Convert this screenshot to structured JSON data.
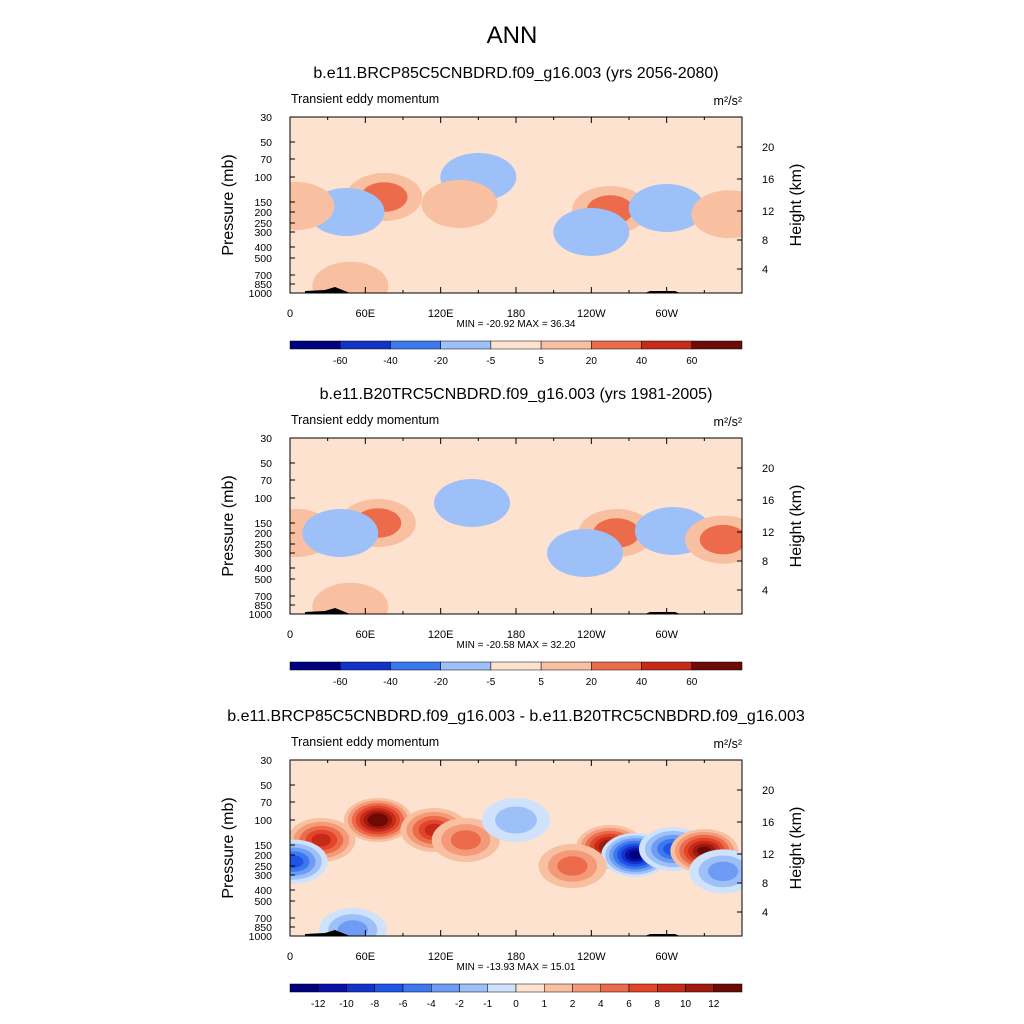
{
  "figure": {
    "title": "ANN"
  },
  "chart_data": [
    {
      "type": "heatmap",
      "title": "b.e11.BRCP85C5CNBDRD.f09_g16.003 (yrs 2056-2080)",
      "subtitle": "Transient eddy momentum",
      "units": "m²/s²",
      "ylabel": "Pressure (mb)",
      "y2label": "Height (km)",
      "xticks": [
        "0",
        "60E",
        "120E",
        "180",
        "120W",
        "60W"
      ],
      "yticks": [
        "30",
        "50",
        "70",
        "100",
        "150",
        "200",
        "250",
        "300",
        "400",
        "500",
        "700",
        "850",
        "1000"
      ],
      "y2ticks": [
        "4",
        "8",
        "12",
        "16",
        "20"
      ],
      "stats": "MIN = -20.92  MAX =  36.34",
      "colorbar_labels": [
        "-60",
        "-40",
        "-20",
        "-5",
        "5",
        "20",
        "40",
        "60"
      ],
      "features": [
        {
          "lon": 75,
          "p": 140,
          "value": 36
        },
        {
          "lon": 150,
          "p": 100,
          "value": -8
        },
        {
          "lon": 135,
          "p": 160,
          "value": 8
        },
        {
          "lon": 45,
          "p": 200,
          "value": -5
        },
        {
          "lon": 255,
          "p": 190,
          "value": 30
        },
        {
          "lon": 300,
          "p": 180,
          "value": -21
        },
        {
          "lon": 350,
          "p": 210,
          "value": 15
        },
        {
          "lon": 5,
          "p": 170,
          "value": 10
        },
        {
          "lon": 48,
          "p": 880,
          "value": 20
        },
        {
          "lon": 240,
          "p": 300,
          "value": -4
        }
      ]
    },
    {
      "type": "heatmap",
      "title": "b.e11.B20TRC5CNBDRD.f09_g16.003 (yrs 1981-2005)",
      "subtitle": "Transient eddy momentum",
      "units": "m²/s²",
      "ylabel": "Pressure (mb)",
      "y2label": "Height (km)",
      "xticks": [
        "0",
        "60E",
        "120E",
        "180",
        "120W",
        "60W"
      ],
      "yticks": [
        "30",
        "50",
        "70",
        "100",
        "150",
        "200",
        "250",
        "300",
        "400",
        "500",
        "700",
        "850",
        "1000"
      ],
      "y2ticks": [
        "4",
        "8",
        "12",
        "16",
        "20"
      ],
      "stats": "MIN = -20.58  MAX =  32.20",
      "colorbar_labels": [
        "-60",
        "-40",
        "-20",
        "-5",
        "5",
        "20",
        "40",
        "60"
      ],
      "features": [
        {
          "lon": 70,
          "p": 150,
          "value": 30
        },
        {
          "lon": 145,
          "p": 110,
          "value": -10
        },
        {
          "lon": 5,
          "p": 200,
          "value": 15
        },
        {
          "lon": 40,
          "p": 200,
          "value": -8
        },
        {
          "lon": 260,
          "p": 200,
          "value": 32
        },
        {
          "lon": 305,
          "p": 190,
          "value": -20
        },
        {
          "lon": 345,
          "p": 230,
          "value": 25
        },
        {
          "lon": 48,
          "p": 880,
          "value": 20
        },
        {
          "lon": 235,
          "p": 300,
          "value": -4
        }
      ]
    },
    {
      "type": "heatmap",
      "title": "b.e11.BRCP85C5CNBDRD.f09_g16.003 - b.e11.B20TRC5CNBDRD.f09_g16.003",
      "subtitle": "Transient eddy momentum",
      "units": "m²/s²",
      "ylabel": "Pressure (mb)",
      "y2label": "Height (km)",
      "xticks": [
        "0",
        "60E",
        "120E",
        "180",
        "120W",
        "60W"
      ],
      "yticks": [
        "30",
        "50",
        "70",
        "100",
        "150",
        "200",
        "250",
        "300",
        "400",
        "500",
        "700",
        "850",
        "1000"
      ],
      "y2ticks": [
        "4",
        "8",
        "12",
        "16",
        "20"
      ],
      "stats": "MIN = -13.93  MAX =  15.01",
      "colorbar_labels": [
        "-12",
        "-10",
        "-8",
        "-6",
        "-4",
        "-2",
        "-1",
        "0",
        "1",
        "2",
        "4",
        "6",
        "8",
        "10",
        "12"
      ],
      "features": [
        {
          "lon": 70,
          "p": 100,
          "value": 15
        },
        {
          "lon": 115,
          "p": 120,
          "value": 8
        },
        {
          "lon": 140,
          "p": 140,
          "value": 6
        },
        {
          "lon": 25,
          "p": 140,
          "value": 8
        },
        {
          "lon": 3,
          "p": 230,
          "value": -8
        },
        {
          "lon": 255,
          "p": 160,
          "value": 12
        },
        {
          "lon": 275,
          "p": 200,
          "value": -14
        },
        {
          "lon": 305,
          "p": 170,
          "value": -8
        },
        {
          "lon": 330,
          "p": 180,
          "value": 13
        },
        {
          "lon": 225,
          "p": 250,
          "value": 5
        },
        {
          "lon": 180,
          "p": 100,
          "value": -3
        },
        {
          "lon": 345,
          "p": 280,
          "value": -5
        },
        {
          "lon": 50,
          "p": 900,
          "value": -6
        }
      ]
    }
  ],
  "colors": {
    "diverging": [
      "#00007f",
      "#0a0fa8",
      "#1232c8",
      "#1e55e6",
      "#3c78f0",
      "#6e9cf5",
      "#9ec0f8",
      "#cfe2fb",
      "#fde2cf",
      "#f8c0a0",
      "#f49a78",
      "#ec6b4a",
      "#e2452a",
      "#c62a18",
      "#a01a0e",
      "#6e0a05"
    ]
  }
}
